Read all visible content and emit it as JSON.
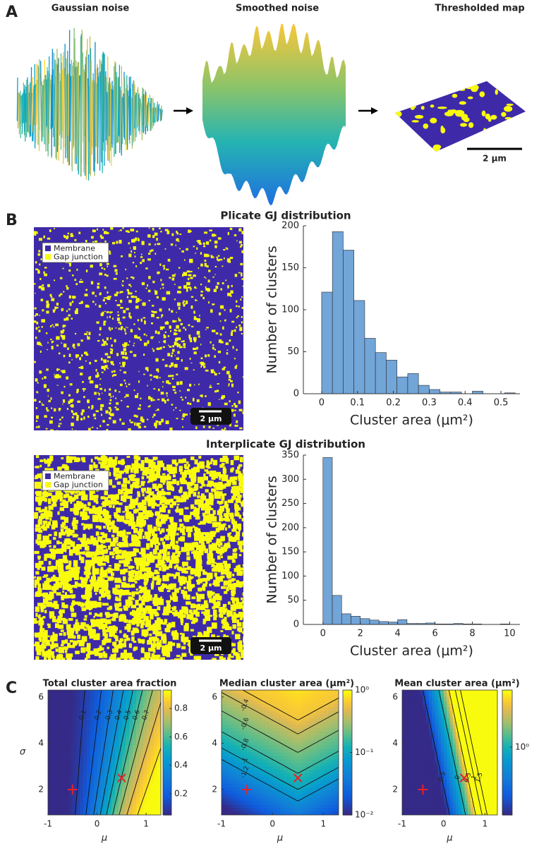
{
  "panel_labels": [
    "A",
    "B",
    "C"
  ],
  "panel_a": {
    "titles": [
      "Gaussian noise",
      "Smoothed noise",
      "Thresholded map"
    ],
    "scale_bar": "2 µm"
  },
  "panel_b": {
    "legend_colors": [
      "#3e2aa9",
      "#f9fb0e"
    ],
    "rows": [
      {
        "title": "Plicate GJ distribution",
        "legend": [
          "Membrane",
          "Gap junction"
        ],
        "scale_bar": "2 µm"
      },
      {
        "title": "Interplicate GJ distribution",
        "legend": [
          "Membrane",
          "Gap junction"
        ],
        "scale_bar": "2 µm"
      }
    ]
  },
  "chart_data": [
    {
      "type": "histogram",
      "x_label": "Cluster area (μm²)",
      "y_label": "Number of clusters",
      "bins": [
        0,
        0.03,
        0.06,
        0.09,
        0.12,
        0.15,
        0.18,
        0.21,
        0.24,
        0.27,
        0.3,
        0.33,
        0.36,
        0.39,
        0.42,
        0.45,
        0.48,
        0.51,
        0.54
      ],
      "values": [
        121,
        193,
        171,
        111,
        66,
        49,
        40,
        20,
        24,
        10,
        5,
        2,
        2,
        0,
        3,
        0,
        0,
        1
      ],
      "color": "#72a5d8",
      "edge_color": "#2b2b2b",
      "xlim": [
        -0.051,
        0.553
      ],
      "ylim": [
        0,
        200
      ],
      "xticks": [
        0,
        0.1,
        0.2,
        0.3,
        0.4,
        0.5
      ],
      "yticks": [
        0,
        50,
        100,
        150,
        200
      ]
    },
    {
      "type": "histogram",
      "x_label": "Cluster area (μm²)",
      "y_label": "Number of clusters",
      "bins": [
        0,
        0.5,
        1,
        1.5,
        2,
        2.5,
        3,
        3.5,
        4,
        4.5,
        5,
        5.5,
        6,
        6.5,
        7,
        7.5,
        8,
        8.5,
        9,
        9.5,
        10
      ],
      "values": [
        345,
        60,
        22,
        17,
        12,
        9,
        6,
        5,
        10,
        2,
        2,
        3,
        1,
        1,
        2,
        1,
        1,
        0,
        0,
        1
      ],
      "color": "#72a5d8",
      "edge_color": "#2b2b2b",
      "xlim": [
        -1.05,
        10.55
      ],
      "ylim": [
        0,
        350
      ],
      "xticks": [
        0,
        2,
        4,
        6,
        8,
        10
      ],
      "yticks": [
        0,
        50,
        100,
        150,
        200,
        250,
        300,
        350
      ]
    },
    {
      "type": "heatmap",
      "title": "Total cluster area fraction",
      "x_label": "μ",
      "y_label": "σ",
      "colormap": "parula",
      "xlim": [
        -1,
        1.3
      ],
      "ylim": [
        0.9,
        6.3
      ],
      "xticks": [
        -1,
        0,
        1
      ],
      "yticks": [
        2,
        4,
        6
      ],
      "colorbar": {
        "lim": [
          0.05,
          0.93
        ],
        "log": false,
        "ticks": [
          0.2,
          0.4,
          0.6,
          0.8
        ]
      },
      "contour_levels": [
        0.1,
        0.2,
        0.3,
        0.4,
        0.5,
        0.6,
        0.7,
        0.8,
        0.9
      ],
      "markers": [
        {
          "x": -0.5,
          "y": 2,
          "symbol": "plus",
          "color": "#e8202a"
        },
        {
          "x": 0.5,
          "y": 2.5,
          "symbol": "cross",
          "color": "#e8202a"
        }
      ]
    },
    {
      "type": "heatmap",
      "title": "Median cluster area (μm²)",
      "x_label": "μ",
      "colormap": "parula",
      "xlim": [
        -1,
        1.3
      ],
      "ylim": [
        0.9,
        6.3
      ],
      "xticks": [
        -1,
        0,
        1
      ],
      "yticks": [
        2,
        4,
        6
      ],
      "colorbar": {
        "lim": [
          0.01,
          1
        ],
        "log": true,
        "ticks": [
          {
            "value": 0.01,
            "label": "10⁻²"
          },
          {
            "value": 0.1,
            "label": "10⁻¹"
          },
          {
            "value": 1,
            "label": "10⁰"
          }
        ]
      },
      "contour_levels": [
        -0.2,
        -0.4,
        -0.6,
        -0.8,
        -1,
        -1.2
      ],
      "markers": [
        {
          "x": -0.5,
          "y": 2,
          "symbol": "plus",
          "color": "#e8202a"
        },
        {
          "x": 0.5,
          "y": 2.5,
          "symbol": "cross",
          "color": "#e8202a"
        }
      ]
    },
    {
      "type": "heatmap",
      "title": "Mean cluster area (μm²)",
      "x_label": "μ",
      "colormap": "parula",
      "xlim": [
        -1,
        1.3
      ],
      "ylim": [
        0.9,
        6.3
      ],
      "xticks": [
        -1,
        0,
        1
      ],
      "yticks": [
        2,
        4,
        6
      ],
      "colorbar": {
        "lim": [
          0.25,
          3.2
        ],
        "log": true,
        "ticks": [
          {
            "value": 1,
            "label": "10⁰"
          }
        ]
      },
      "contour_levels": [
        -0.5,
        0,
        0.5,
        1,
        1.5
      ],
      "markers": [
        {
          "x": -0.5,
          "y": 2,
          "symbol": "plus",
          "color": "#e8202a"
        },
        {
          "x": 0.5,
          "y": 2.5,
          "symbol": "cross",
          "color": "#e8202a"
        }
      ]
    }
  ]
}
